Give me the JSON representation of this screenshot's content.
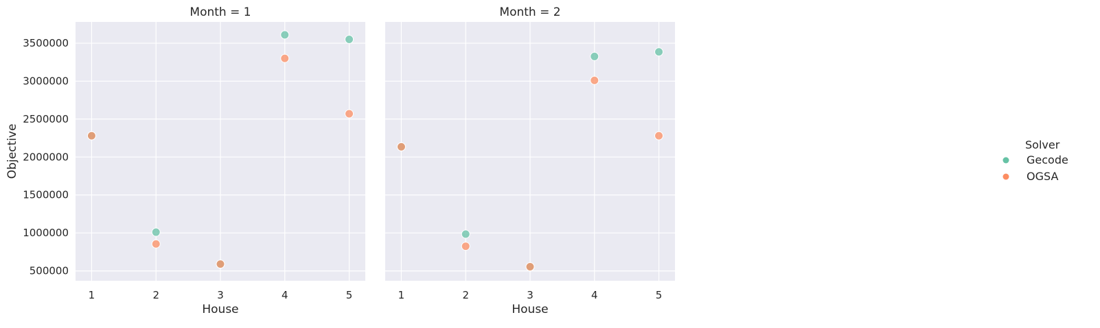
{
  "chart_data": [
    {
      "type": "scatter",
      "title": "Month = 1",
      "xlabel": "House",
      "ylabel": "Objective",
      "xlim": [
        0.75,
        5.25
      ],
      "ylim": [
        370000,
        3780000
      ],
      "xticks": [
        1,
        2,
        3,
        4,
        5
      ],
      "yticks": [
        500000,
        1000000,
        1500000,
        2000000,
        2500000,
        3000000,
        3500000
      ],
      "grid": true,
      "series": [
        {
          "name": "Gecode",
          "color": "#66c2a5",
          "x": [
            1,
            2,
            3,
            4,
            5
          ],
          "y": [
            2280000,
            1010000,
            590000,
            3610000,
            3550000
          ]
        },
        {
          "name": "OGSA",
          "color": "#fc8d62",
          "x": [
            1,
            2,
            3,
            4,
            5
          ],
          "y": [
            2280000,
            855000,
            590000,
            3300000,
            2570000
          ]
        }
      ]
    },
    {
      "type": "scatter",
      "title": "Month = 2",
      "xlabel": "House",
      "ylabel": "",
      "xlim": [
        0.75,
        5.25
      ],
      "ylim": [
        370000,
        3780000
      ],
      "xticks": [
        1,
        2,
        3,
        4,
        5
      ],
      "yticks": [
        500000,
        1000000,
        1500000,
        2000000,
        2500000,
        3000000,
        3500000
      ],
      "grid": true,
      "series": [
        {
          "name": "Gecode",
          "color": "#66c2a5",
          "x": [
            1,
            2,
            3,
            4,
            5
          ],
          "y": [
            2135000,
            985000,
            555000,
            3325000,
            3385000
          ]
        },
        {
          "name": "OGSA",
          "color": "#fc8d62",
          "x": [
            1,
            2,
            3,
            4,
            5
          ],
          "y": [
            2135000,
            825000,
            555000,
            3010000,
            2280000
          ]
        }
      ]
    }
  ],
  "legend": {
    "title": "Solver",
    "placement": "right",
    "entries": [
      {
        "label": "Gecode",
        "color": "#66c2a5"
      },
      {
        "label": "OGSA",
        "color": "#fc8d62"
      }
    ]
  }
}
